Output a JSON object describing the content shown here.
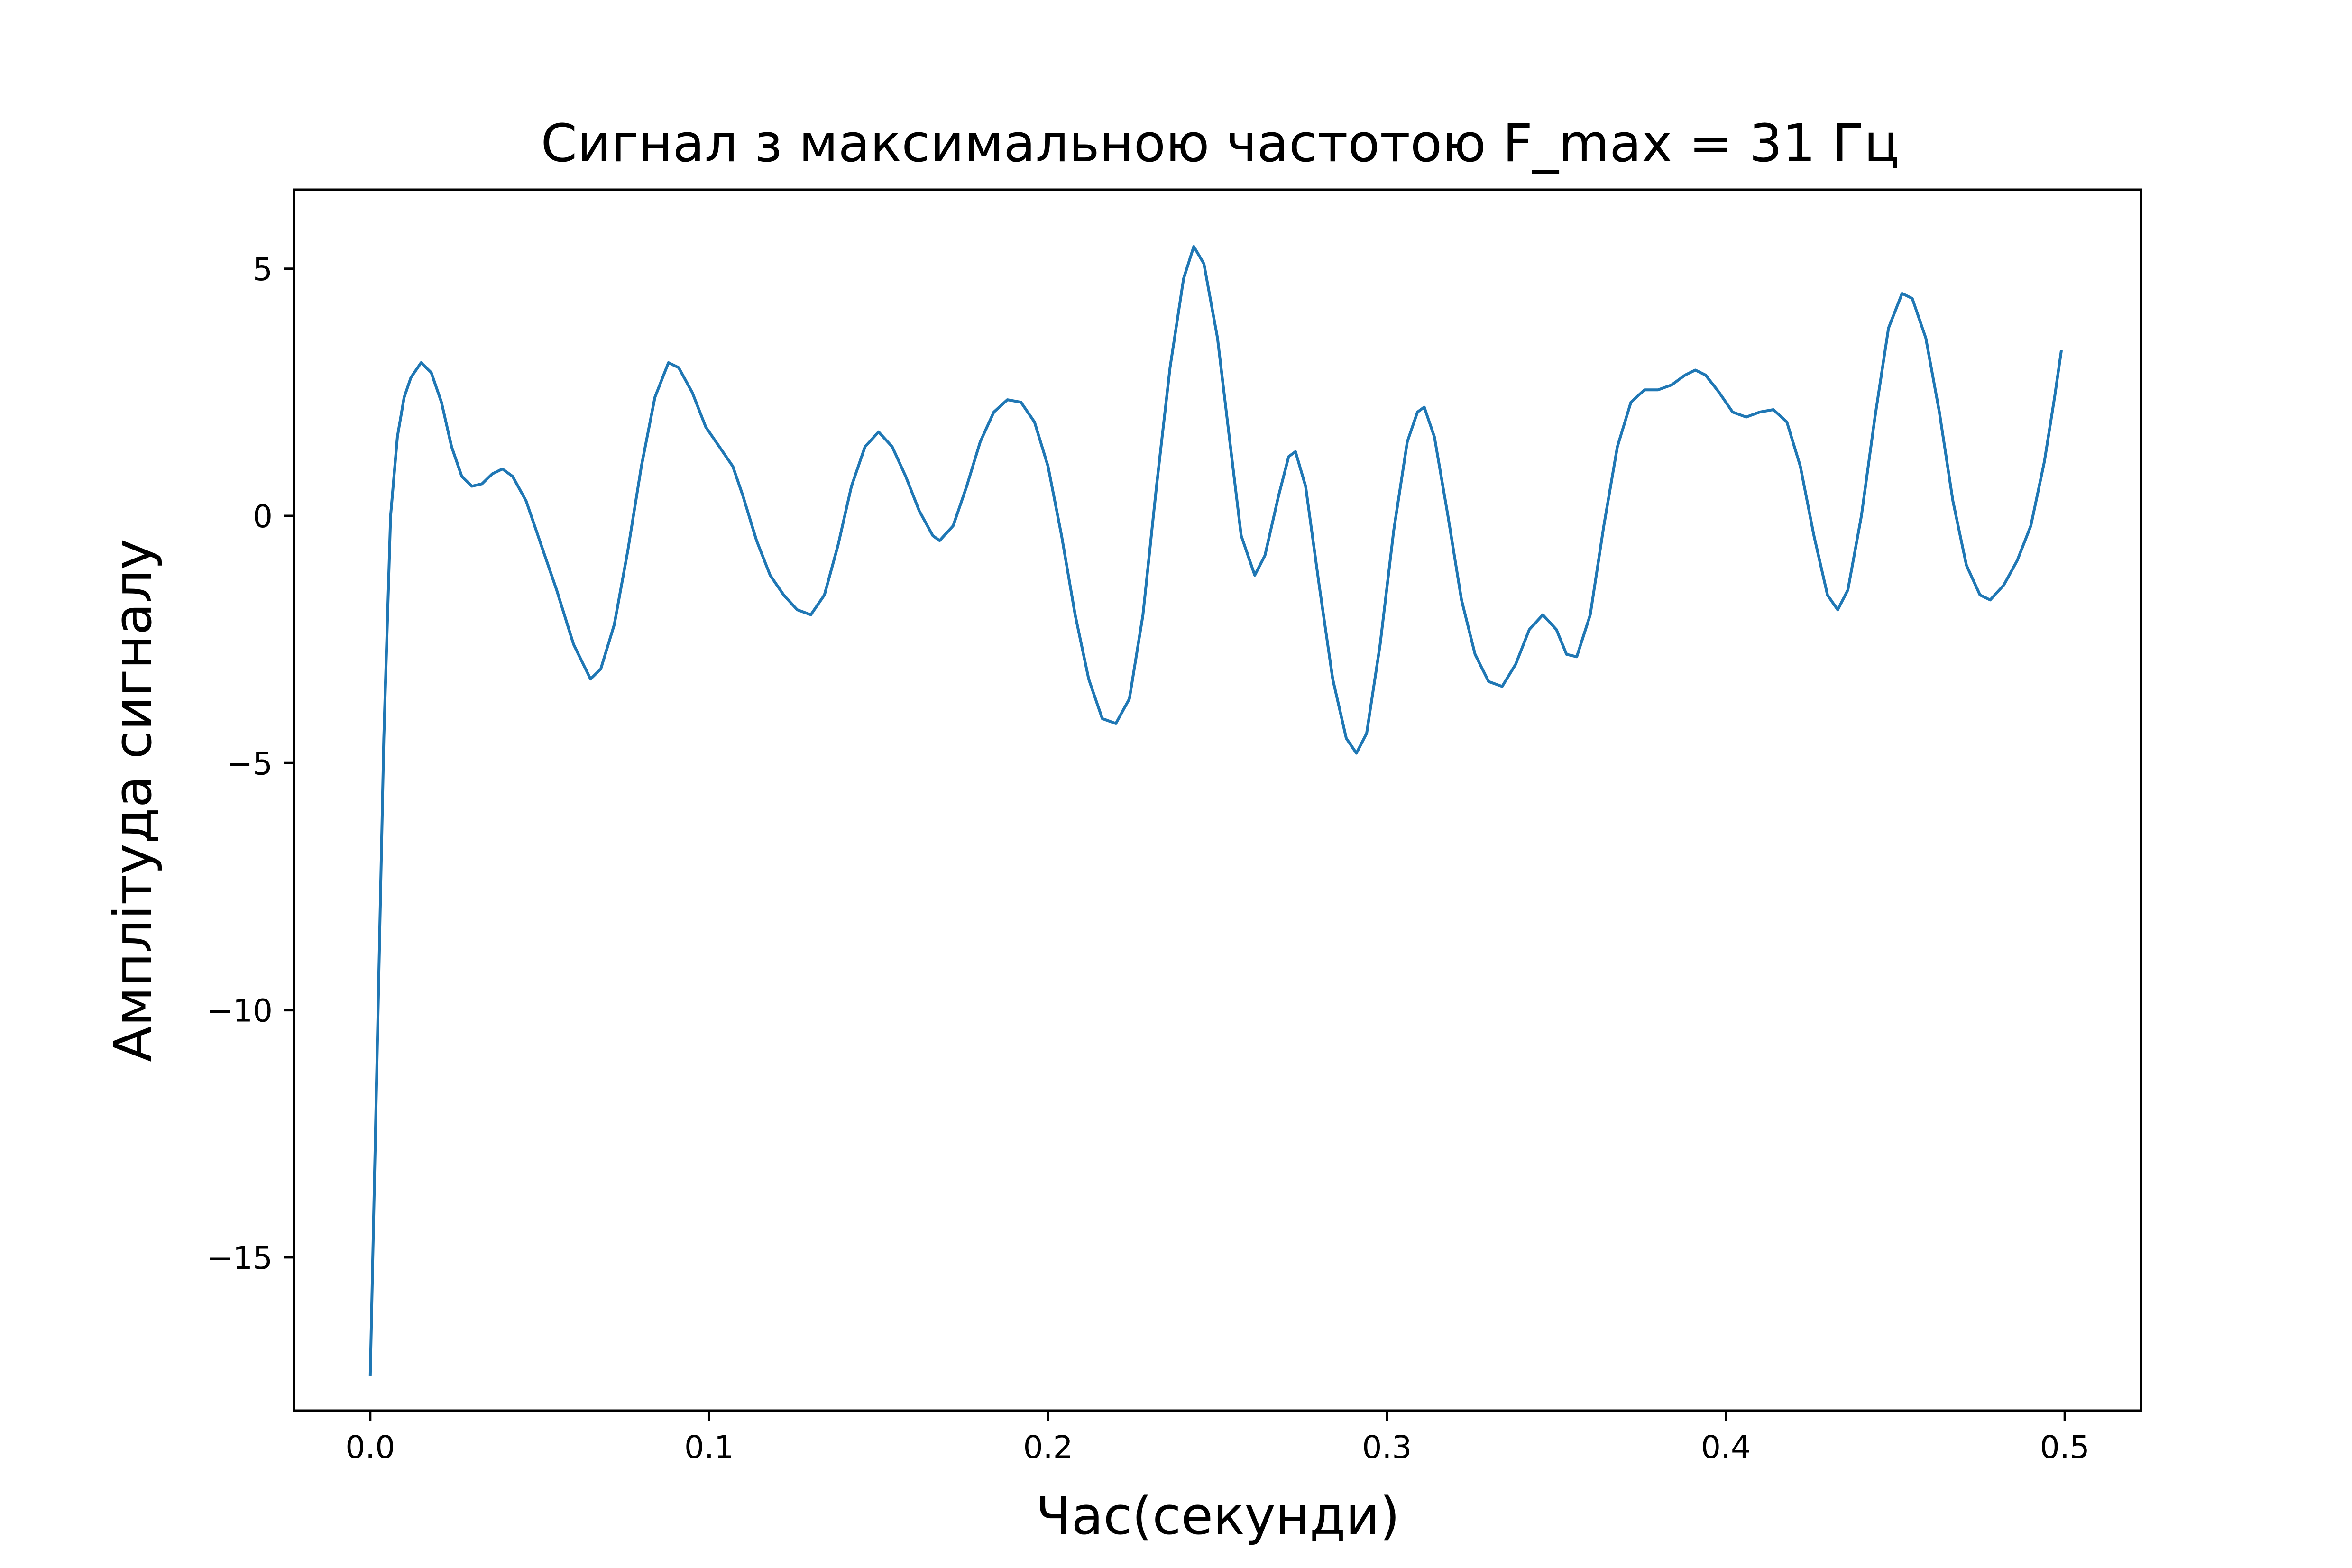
{
  "chart_data": {
    "type": "line",
    "title": "Сигнал з максимальною частотою F_max = 31 Гц",
    "xlabel": "Час(секунди)",
    "ylabel": "Амплітуда сигналу",
    "xlim": [
      -0.0225,
      0.5225
    ],
    "ylim": [
      -18.1,
      6.6
    ],
    "grid": false,
    "legend": "none",
    "line_color": "#1f77b4",
    "x_ticks": [
      {
        "value": 0.0,
        "label": "0.0"
      },
      {
        "value": 0.1,
        "label": "0.1"
      },
      {
        "value": 0.2,
        "label": "0.2"
      },
      {
        "value": 0.3,
        "label": "0.3"
      },
      {
        "value": 0.4,
        "label": "0.4"
      },
      {
        "value": 0.5,
        "label": "0.5"
      }
    ],
    "y_ticks": [
      {
        "value": 5,
        "label": "5"
      },
      {
        "value": 0,
        "label": "0"
      },
      {
        "value": -5,
        "label": "−5"
      },
      {
        "value": -10,
        "label": "−10"
      },
      {
        "value": -15,
        "label": "−15"
      }
    ],
    "series": [
      {
        "name": "signal",
        "points": [
          [
            0.0,
            -17.4
          ],
          [
            0.002,
            -11.0
          ],
          [
            0.004,
            -4.5
          ],
          [
            0.006,
            0.0
          ],
          [
            0.008,
            1.6
          ],
          [
            0.01,
            2.4
          ],
          [
            0.012,
            2.8
          ],
          [
            0.015,
            3.1
          ],
          [
            0.018,
            2.9
          ],
          [
            0.021,
            2.3
          ],
          [
            0.024,
            1.4
          ],
          [
            0.027,
            0.8
          ],
          [
            0.03,
            0.6
          ],
          [
            0.033,
            0.65
          ],
          [
            0.036,
            0.85
          ],
          [
            0.039,
            0.95
          ],
          [
            0.042,
            0.8
          ],
          [
            0.046,
            0.3
          ],
          [
            0.05,
            -0.5
          ],
          [
            0.055,
            -1.5
          ],
          [
            0.06,
            -2.6
          ],
          [
            0.065,
            -3.3
          ],
          [
            0.068,
            -3.1
          ],
          [
            0.072,
            -2.2
          ],
          [
            0.076,
            -0.7
          ],
          [
            0.08,
            1.0
          ],
          [
            0.084,
            2.4
          ],
          [
            0.088,
            3.1
          ],
          [
            0.091,
            3.0
          ],
          [
            0.095,
            2.5
          ],
          [
            0.099,
            1.8
          ],
          [
            0.103,
            1.4
          ],
          [
            0.107,
            1.0
          ],
          [
            0.11,
            0.4
          ],
          [
            0.114,
            -0.5
          ],
          [
            0.118,
            -1.2
          ],
          [
            0.122,
            -1.6
          ],
          [
            0.126,
            -1.9
          ],
          [
            0.13,
            -2.0
          ],
          [
            0.134,
            -1.6
          ],
          [
            0.138,
            -0.6
          ],
          [
            0.142,
            0.6
          ],
          [
            0.146,
            1.4
          ],
          [
            0.15,
            1.7
          ],
          [
            0.154,
            1.4
          ],
          [
            0.158,
            0.8
          ],
          [
            0.162,
            0.1
          ],
          [
            0.166,
            -0.4
          ],
          [
            0.168,
            -0.5
          ],
          [
            0.172,
            -0.2
          ],
          [
            0.176,
            0.6
          ],
          [
            0.18,
            1.5
          ],
          [
            0.184,
            2.1
          ],
          [
            0.188,
            2.35
          ],
          [
            0.192,
            2.3
          ],
          [
            0.196,
            1.9
          ],
          [
            0.2,
            1.0
          ],
          [
            0.204,
            -0.4
          ],
          [
            0.208,
            -2.0
          ],
          [
            0.212,
            -3.3
          ],
          [
            0.216,
            -4.1
          ],
          [
            0.22,
            -4.2
          ],
          [
            0.224,
            -3.7
          ],
          [
            0.228,
            -2.0
          ],
          [
            0.232,
            0.6
          ],
          [
            0.236,
            3.0
          ],
          [
            0.24,
            4.8
          ],
          [
            0.243,
            5.45
          ],
          [
            0.246,
            5.1
          ],
          [
            0.25,
            3.6
          ],
          [
            0.254,
            1.3
          ],
          [
            0.257,
            -0.4
          ],
          [
            0.261,
            -1.2
          ],
          [
            0.264,
            -0.8
          ],
          [
            0.268,
            0.4
          ],
          [
            0.271,
            1.2
          ],
          [
            0.273,
            1.3
          ],
          [
            0.276,
            0.6
          ],
          [
            0.28,
            -1.4
          ],
          [
            0.284,
            -3.3
          ],
          [
            0.288,
            -4.5
          ],
          [
            0.291,
            -4.8
          ],
          [
            0.294,
            -4.4
          ],
          [
            0.298,
            -2.6
          ],
          [
            0.302,
            -0.3
          ],
          [
            0.306,
            1.5
          ],
          [
            0.309,
            2.1
          ],
          [
            0.311,
            2.2
          ],
          [
            0.314,
            1.6
          ],
          [
            0.318,
            0.0
          ],
          [
            0.322,
            -1.7
          ],
          [
            0.326,
            -2.8
          ],
          [
            0.33,
            -3.35
          ],
          [
            0.334,
            -3.45
          ],
          [
            0.338,
            -3.0
          ],
          [
            0.342,
            -2.3
          ],
          [
            0.346,
            -2.0
          ],
          [
            0.35,
            -2.3
          ],
          [
            0.353,
            -2.8
          ],
          [
            0.356,
            -2.85
          ],
          [
            0.36,
            -2.0
          ],
          [
            0.364,
            -0.2
          ],
          [
            0.368,
            1.4
          ],
          [
            0.372,
            2.3
          ],
          [
            0.376,
            2.55
          ],
          [
            0.38,
            2.55
          ],
          [
            0.384,
            2.65
          ],
          [
            0.388,
            2.85
          ],
          [
            0.391,
            2.95
          ],
          [
            0.394,
            2.85
          ],
          [
            0.398,
            2.5
          ],
          [
            0.402,
            2.1
          ],
          [
            0.406,
            2.0
          ],
          [
            0.41,
            2.1
          ],
          [
            0.414,
            2.15
          ],
          [
            0.418,
            1.9
          ],
          [
            0.422,
            1.0
          ],
          [
            0.426,
            -0.4
          ],
          [
            0.43,
            -1.6
          ],
          [
            0.433,
            -1.9
          ],
          [
            0.436,
            -1.5
          ],
          [
            0.44,
            0.0
          ],
          [
            0.444,
            2.0
          ],
          [
            0.448,
            3.8
          ],
          [
            0.452,
            4.5
          ],
          [
            0.455,
            4.4
          ],
          [
            0.459,
            3.6
          ],
          [
            0.463,
            2.1
          ],
          [
            0.467,
            0.3
          ],
          [
            0.471,
            -1.0
          ],
          [
            0.475,
            -1.6
          ],
          [
            0.478,
            -1.7
          ],
          [
            0.482,
            -1.4
          ],
          [
            0.486,
            -0.9
          ],
          [
            0.49,
            -0.2
          ],
          [
            0.494,
            1.1
          ],
          [
            0.497,
            2.4
          ],
          [
            0.499,
            3.35
          ]
        ]
      }
    ]
  }
}
